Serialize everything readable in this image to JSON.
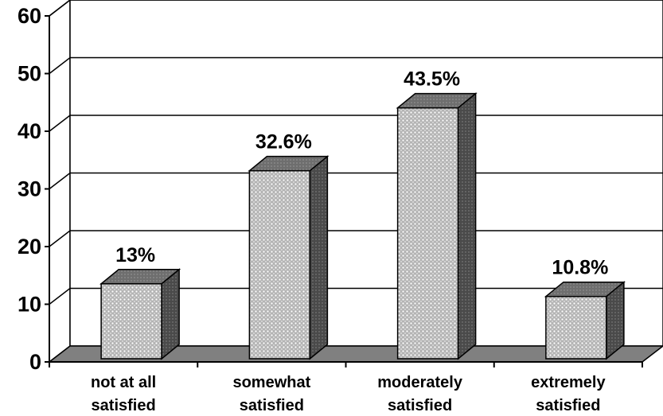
{
  "chart_data": {
    "type": "bar",
    "style": "3d",
    "categories": [
      [
        "not at all",
        "satisfied"
      ],
      [
        "somewhat",
        "satisfied"
      ],
      [
        "moderately",
        "satisfied"
      ],
      [
        "extremely",
        "satisfied"
      ]
    ],
    "values": [
      13,
      32.6,
      43.5,
      10.8
    ],
    "data_labels": [
      "13%",
      "32.6%",
      "43.5%",
      "10.8%"
    ],
    "title": "",
    "xlabel": "",
    "ylabel": "",
    "ylim": [
      0,
      60
    ],
    "yticks": [
      "0",
      "10",
      "20",
      "30",
      "40",
      "50",
      "60"
    ],
    "grid": true,
    "legend": "none",
    "colors": {
      "bar_front": "#b4b4b4",
      "bar_dots": "#ffffff",
      "bar_top": "#6e6e6e",
      "bar_side": "#4a4a4a",
      "floor": "#808080",
      "grid": "#000000"
    }
  }
}
